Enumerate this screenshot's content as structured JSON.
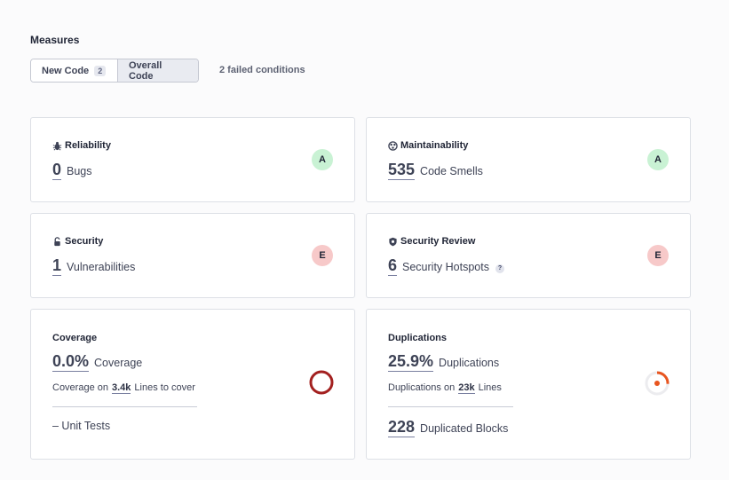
{
  "header": {
    "title": "Measures",
    "tabs": [
      {
        "label": "New Code",
        "badge": "2"
      },
      {
        "label": "Overall Code"
      }
    ],
    "failed_conditions": "2 failed conditions"
  },
  "cards": {
    "reliability": {
      "title": "Reliability",
      "value": "0",
      "label": "Bugs",
      "rating": "A",
      "icon": "bug-icon"
    },
    "maintainability": {
      "title": "Maintainability",
      "value": "535",
      "label": "Code Smells",
      "rating": "A",
      "icon": "maintainability-icon"
    },
    "security": {
      "title": "Security",
      "value": "1",
      "label": "Vulnerabilities",
      "rating": "E",
      "icon": "lock-icon"
    },
    "security_review": {
      "title": "Security Review",
      "value": "6",
      "label": "Security Hotspots",
      "help": "?",
      "rating": "E",
      "icon": "shield-icon"
    },
    "coverage": {
      "title": "Coverage",
      "value": "0.0%",
      "label": "Coverage",
      "sub_prefix": "Coverage on",
      "sub_value": "3.4k",
      "sub_suffix": "Lines to cover",
      "unit_tests": "– Unit Tests",
      "gauge_percent": 0
    },
    "duplications": {
      "title": "Duplications",
      "value": "25.9%",
      "label": "Duplications",
      "sub_prefix": "Duplications on",
      "sub_value": "23k",
      "sub_suffix": "Lines",
      "blocks_value": "228",
      "blocks_label": "Duplicated Blocks",
      "gauge_percent": 25.9
    }
  },
  "colors": {
    "rating_a": "#c9f2d4",
    "rating_e": "#f7c9c9",
    "coverage_ring": "#a3201f",
    "duplication_accent": "#e8551f"
  }
}
